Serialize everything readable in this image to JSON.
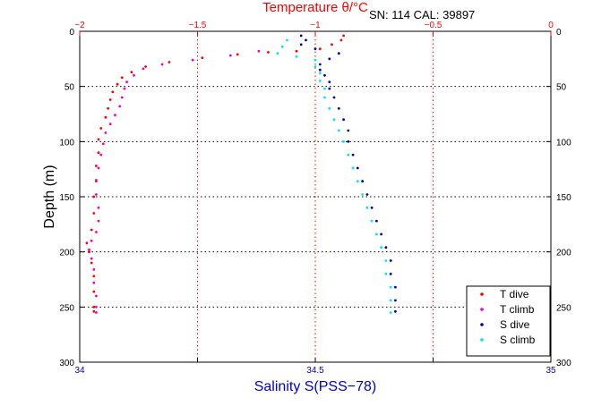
{
  "chart_data": {
    "type": "scatter",
    "title": "Temperature θ/°C",
    "info": "SN: 114  CAL: 39897",
    "ylabel": "Depth (m)",
    "xlabel_bottom": "Salinity S(PSS−78)",
    "xlabel_top": "Temperature θ/°C",
    "ylim": [
      0,
      300
    ],
    "y_inverted": true,
    "xlim_bottom": [
      34,
      35
    ],
    "xlim_top": [
      -2,
      0
    ],
    "grid": "dotted",
    "legend_position": "bottom-right",
    "y_ticks": [
      "0",
      "50",
      "100",
      "150",
      "200",
      "250",
      "300"
    ],
    "x_ticks_bottom": [
      "34",
      "",
      "34.5",
      "",
      "35"
    ],
    "x_ticks_top": [
      "−2",
      "−1.5",
      "−1",
      "−0.5",
      "0"
    ],
    "colors": {
      "axis": "#000000",
      "temperature_axis": "#ff0000",
      "salinity_axis": "#0000cc",
      "t_dive": "#ff0000",
      "t_climb": "#ee00cc",
      "s_dive": "#0000aa",
      "s_climb": "#00e5ee"
    },
    "series": [
      {
        "name": "T dive",
        "axis": "top",
        "color": "#ff0000",
        "points": [
          [
            -0.88,
            4
          ],
          [
            -0.89,
            8
          ],
          [
            -0.93,
            12
          ],
          [
            -0.98,
            16
          ],
          [
            -1.08,
            18
          ],
          [
            -1.2,
            19
          ],
          [
            -1.33,
            21
          ],
          [
            -1.48,
            24
          ],
          [
            -1.62,
            28
          ],
          [
            -1.72,
            32
          ],
          [
            -1.78,
            37
          ],
          [
            -1.82,
            42
          ],
          [
            -1.84,
            48
          ],
          [
            -1.86,
            55
          ],
          [
            -1.87,
            62
          ],
          [
            -1.88,
            70
          ],
          [
            -1.89,
            78
          ],
          [
            -1.91,
            88
          ],
          [
            -1.92,
            98
          ],
          [
            -1.92,
            110
          ],
          [
            -1.93,
            122
          ],
          [
            -1.93,
            135
          ],
          [
            -1.94,
            150
          ],
          [
            -1.94,
            165
          ],
          [
            -1.95,
            180
          ],
          [
            -1.97,
            192
          ],
          [
            -1.96,
            200
          ],
          [
            -1.95,
            210
          ],
          [
            -1.94,
            222
          ],
          [
            -1.94,
            236
          ],
          [
            -1.94,
            250
          ],
          [
            -1.94,
            254
          ]
        ]
      },
      {
        "name": "T climb",
        "axis": "top",
        "color": "#ee00cc",
        "points": [
          [
            -1.24,
            18
          ],
          [
            -1.36,
            22
          ],
          [
            -1.52,
            26
          ],
          [
            -1.65,
            30
          ],
          [
            -1.73,
            34
          ],
          [
            -1.77,
            40
          ],
          [
            -1.8,
            46
          ],
          [
            -1.81,
            52
          ],
          [
            -1.82,
            60
          ],
          [
            -1.83,
            68
          ],
          [
            -1.85,
            76
          ],
          [
            -1.87,
            84
          ],
          [
            -1.89,
            92
          ],
          [
            -1.9,
            102
          ],
          [
            -1.91,
            112
          ],
          [
            -1.92,
            124
          ],
          [
            -1.93,
            136
          ],
          [
            -1.93,
            148
          ],
          [
            -1.92,
            160
          ],
          [
            -1.92,
            172
          ],
          [
            -1.93,
            182
          ],
          [
            -1.95,
            190
          ],
          [
            -1.96,
            198
          ],
          [
            -1.95,
            206
          ],
          [
            -1.94,
            216
          ],
          [
            -1.94,
            228
          ],
          [
            -1.93,
            240
          ],
          [
            -1.93,
            250
          ],
          [
            -1.93,
            255
          ]
        ]
      },
      {
        "name": "S dive",
        "axis": "bottom",
        "color": "#0000aa",
        "points": [
          [
            34.47,
            4
          ],
          [
            34.48,
            8
          ],
          [
            34.47,
            12
          ],
          [
            34.5,
            16
          ],
          [
            34.55,
            20
          ],
          [
            34.53,
            25
          ],
          [
            34.51,
            30
          ],
          [
            34.51,
            35
          ],
          [
            34.52,
            40
          ],
          [
            34.53,
            46
          ],
          [
            34.53,
            52
          ],
          [
            34.54,
            60
          ],
          [
            34.55,
            70
          ],
          [
            34.56,
            80
          ],
          [
            34.57,
            90
          ],
          [
            34.57,
            100
          ],
          [
            34.58,
            112
          ],
          [
            34.59,
            124
          ],
          [
            34.6,
            136
          ],
          [
            34.61,
            148
          ],
          [
            34.62,
            160
          ],
          [
            34.63,
            172
          ],
          [
            34.64,
            184
          ],
          [
            34.65,
            196
          ],
          [
            34.66,
            208
          ],
          [
            34.66,
            220
          ],
          [
            34.67,
            232
          ],
          [
            34.67,
            244
          ],
          [
            34.67,
            254
          ]
        ]
      },
      {
        "name": "S climb",
        "axis": "bottom",
        "color": "#00e5ee",
        "points": [
          [
            34.44,
            8
          ],
          [
            34.43,
            14
          ],
          [
            34.42,
            20
          ],
          [
            34.46,
            23
          ],
          [
            34.5,
            26
          ],
          [
            34.5,
            32
          ],
          [
            34.51,
            38
          ],
          [
            34.51,
            45
          ],
          [
            34.52,
            52
          ],
          [
            34.52,
            60
          ],
          [
            34.53,
            70
          ],
          [
            34.54,
            80
          ],
          [
            34.55,
            90
          ],
          [
            34.56,
            100
          ],
          [
            34.57,
            112
          ],
          [
            34.58,
            124
          ],
          [
            34.59,
            136
          ],
          [
            34.6,
            148
          ],
          [
            34.61,
            160
          ],
          [
            34.62,
            172
          ],
          [
            34.63,
            184
          ],
          [
            34.64,
            196
          ],
          [
            34.65,
            208
          ],
          [
            34.65,
            220
          ],
          [
            34.66,
            232
          ],
          [
            34.66,
            244
          ],
          [
            34.66,
            255
          ]
        ]
      }
    ]
  }
}
